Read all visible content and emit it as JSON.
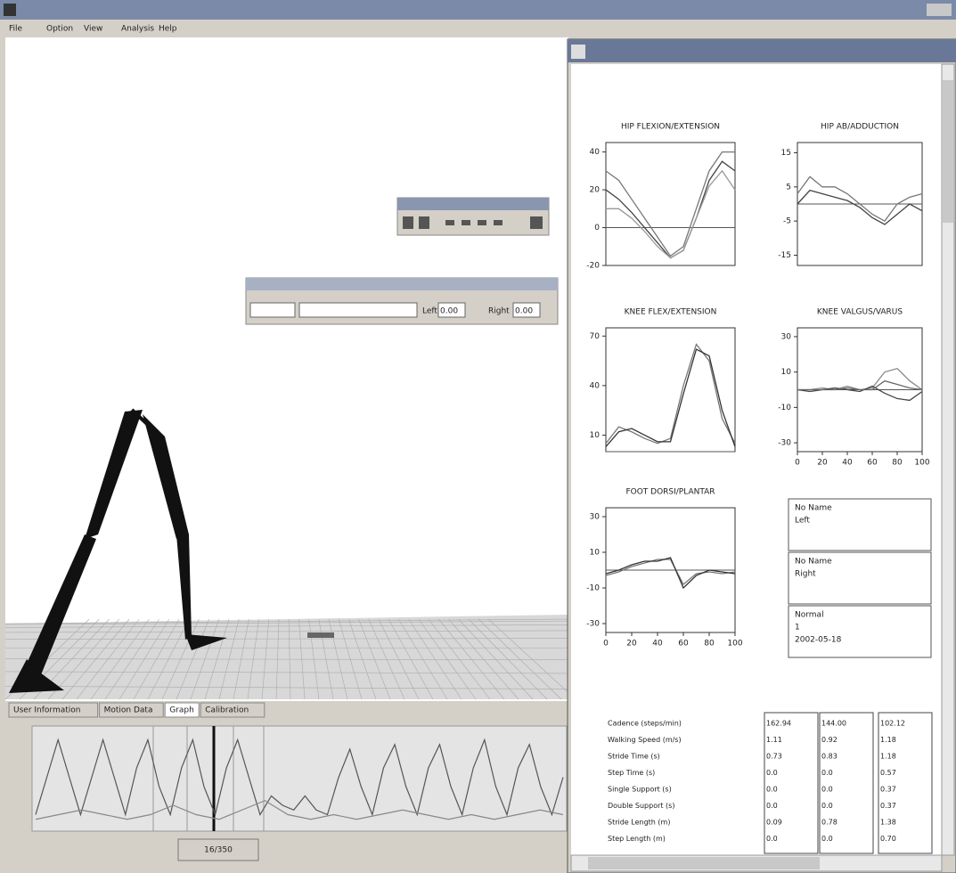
{
  "menu": [
    "File",
    "Option",
    "View",
    "Analysis",
    "Help"
  ],
  "view_toolbar": {
    "left_label": "Left",
    "left_value": "0.00",
    "right_label": "Right",
    "right_value": "0.00"
  },
  "tabs": [
    "User Information",
    "Motion Data",
    "Graph",
    "Calibration"
  ],
  "frame_counter": "16/350",
  "timeline": {
    "ylim": [
      0,
      1
    ],
    "series": [
      {
        "color": "#555555",
        "values": [
          0.1,
          0.5,
          0.9,
          0.5,
          0.1,
          0.5,
          0.9,
          0.5,
          0.1,
          0.6,
          0.9,
          0.4,
          0.1,
          0.6,
          0.9,
          0.4,
          0.1,
          0.6,
          0.9,
          0.5,
          0.1,
          0.3,
          0.2,
          0.15,
          0.3,
          0.15,
          0.1,
          0.5,
          0.8,
          0.4,
          0.1,
          0.6,
          0.85,
          0.4,
          0.1,
          0.6,
          0.85,
          0.4,
          0.1,
          0.6,
          0.9,
          0.4,
          0.1,
          0.6,
          0.85,
          0.4,
          0.1,
          0.5
        ]
      },
      {
        "color": "#888888",
        "values": [
          0.05,
          0.1,
          0.15,
          0.1,
          0.05,
          0.1,
          0.2,
          0.1,
          0.05,
          0.15,
          0.25,
          0.1,
          0.05,
          0.1,
          0.05,
          0.1,
          0.15,
          0.1,
          0.05,
          0.1,
          0.05,
          0.1,
          0.15,
          0.1
        ]
      }
    ]
  },
  "gait_charts": [
    {
      "title": "HIP FLEXION/EXTENSION",
      "x": [
        0,
        10,
        20,
        30,
        40,
        50,
        60,
        70,
        80,
        90,
        100
      ],
      "xlim": [
        0,
        100
      ],
      "ylim": [
        -20,
        45
      ],
      "yticks": [
        40,
        20,
        0,
        -20
      ],
      "series": [
        {
          "color": "#777777",
          "values": [
            30,
            25,
            15,
            5,
            -5,
            -15,
            -10,
            10,
            30,
            40,
            40
          ]
        },
        {
          "color": "#444444",
          "values": [
            20,
            15,
            8,
            0,
            -8,
            -16,
            -12,
            5,
            25,
            35,
            30
          ]
        },
        {
          "color": "#999999",
          "values": [
            10,
            10,
            5,
            -2,
            -10,
            -16,
            -12,
            5,
            22,
            30,
            20
          ]
        }
      ]
    },
    {
      "title": "HIP AB/ADDUCTION",
      "x": [
        0,
        10,
        20,
        30,
        40,
        50,
        60,
        70,
        80,
        90,
        100
      ],
      "xlim": [
        0,
        100
      ],
      "ylim": [
        -18,
        18
      ],
      "yticks": [
        15,
        5,
        -5,
        -15
      ],
      "series": [
        {
          "color": "#777777",
          "values": [
            3,
            8,
            5,
            5,
            3,
            0,
            -3,
            -5,
            0,
            2,
            3
          ]
        },
        {
          "color": "#444444",
          "values": [
            0,
            4,
            3,
            2,
            1,
            -1,
            -4,
            -6,
            -3,
            0,
            -2
          ]
        }
      ]
    },
    {
      "title": "KNEE FLEX/EXTENSION",
      "x": [
        0,
        10,
        20,
        30,
        40,
        50,
        60,
        70,
        80,
        90,
        100
      ],
      "xlim": [
        0,
        100
      ],
      "ylim": [
        0,
        75
      ],
      "yticks": [
        70,
        40,
        10
      ],
      "series": [
        {
          "color": "#777777",
          "values": [
            5,
            15,
            12,
            8,
            5,
            8,
            40,
            65,
            55,
            20,
            5
          ]
        },
        {
          "color": "#333333",
          "values": [
            3,
            12,
            14,
            10,
            6,
            6,
            35,
            62,
            58,
            25,
            3
          ]
        }
      ]
    },
    {
      "title": "KNEE VALGUS/VARUS",
      "x": [
        0,
        10,
        20,
        30,
        40,
        50,
        60,
        70,
        80,
        90,
        100
      ],
      "xlim": [
        0,
        100
      ],
      "ylim": [
        -35,
        35
      ],
      "yticks": [
        30,
        10,
        -10,
        -30
      ],
      "xticks": [
        0,
        20,
        40,
        60,
        80,
        100
      ],
      "series": [
        {
          "color": "#888888",
          "values": [
            0,
            0,
            1,
            0,
            2,
            0,
            1,
            10,
            12,
            5,
            0
          ]
        },
        {
          "color": "#444444",
          "values": [
            0,
            -1,
            0,
            1,
            0,
            -1,
            2,
            -2,
            -5,
            -6,
            -1
          ]
        },
        {
          "color": "#666666",
          "values": [
            0,
            0,
            0,
            0,
            1,
            0,
            0,
            5,
            3,
            1,
            0
          ]
        }
      ]
    },
    {
      "title": "FOOT DORSI/PLANTAR",
      "x": [
        0,
        10,
        20,
        30,
        40,
        50,
        60,
        70,
        80,
        90,
        100
      ],
      "xlim": [
        0,
        100
      ],
      "ylim": [
        -35,
        35
      ],
      "yticks": [
        30,
        10,
        -10,
        -30
      ],
      "xticks": [
        0,
        20,
        40,
        60,
        80,
        100
      ],
      "series": [
        {
          "color": "#777777",
          "values": [
            -3,
            -1,
            2,
            4,
            6,
            6,
            -8,
            -2,
            -1,
            -2,
            -1
          ]
        },
        {
          "color": "#333333",
          "values": [
            -2,
            0,
            3,
            5,
            5,
            7,
            -10,
            -3,
            0,
            -1,
            -2
          ]
        }
      ]
    }
  ],
  "info_boxes": [
    [
      "No Name",
      "Left"
    ],
    [
      "No Name",
      "Right"
    ],
    [
      "Normal",
      "1",
      "2002-05-18"
    ]
  ],
  "parameters": {
    "rows": [
      [
        "Cadence (steps/min)",
        "162.94",
        "144.00",
        "102.12"
      ],
      [
        "Walking Speed (m/s)",
        "1.11",
        "0.92",
        "1.18"
      ],
      [
        "Stride Time (s)",
        "0.73",
        "0.83",
        "1.18"
      ],
      [
        "Step Time (s)",
        "0.0",
        "0.0",
        "0.57"
      ],
      [
        "Single Support (s)",
        "0.0",
        "0.0",
        "0.37"
      ],
      [
        "Double Support (s)",
        "0.0",
        "0.0",
        "0.37"
      ],
      [
        "Stride Length (m)",
        "0.09",
        "0.78",
        "1.38"
      ],
      [
        "Step Length (m)",
        "0.0",
        "0.0",
        "0.70"
      ]
    ]
  }
}
